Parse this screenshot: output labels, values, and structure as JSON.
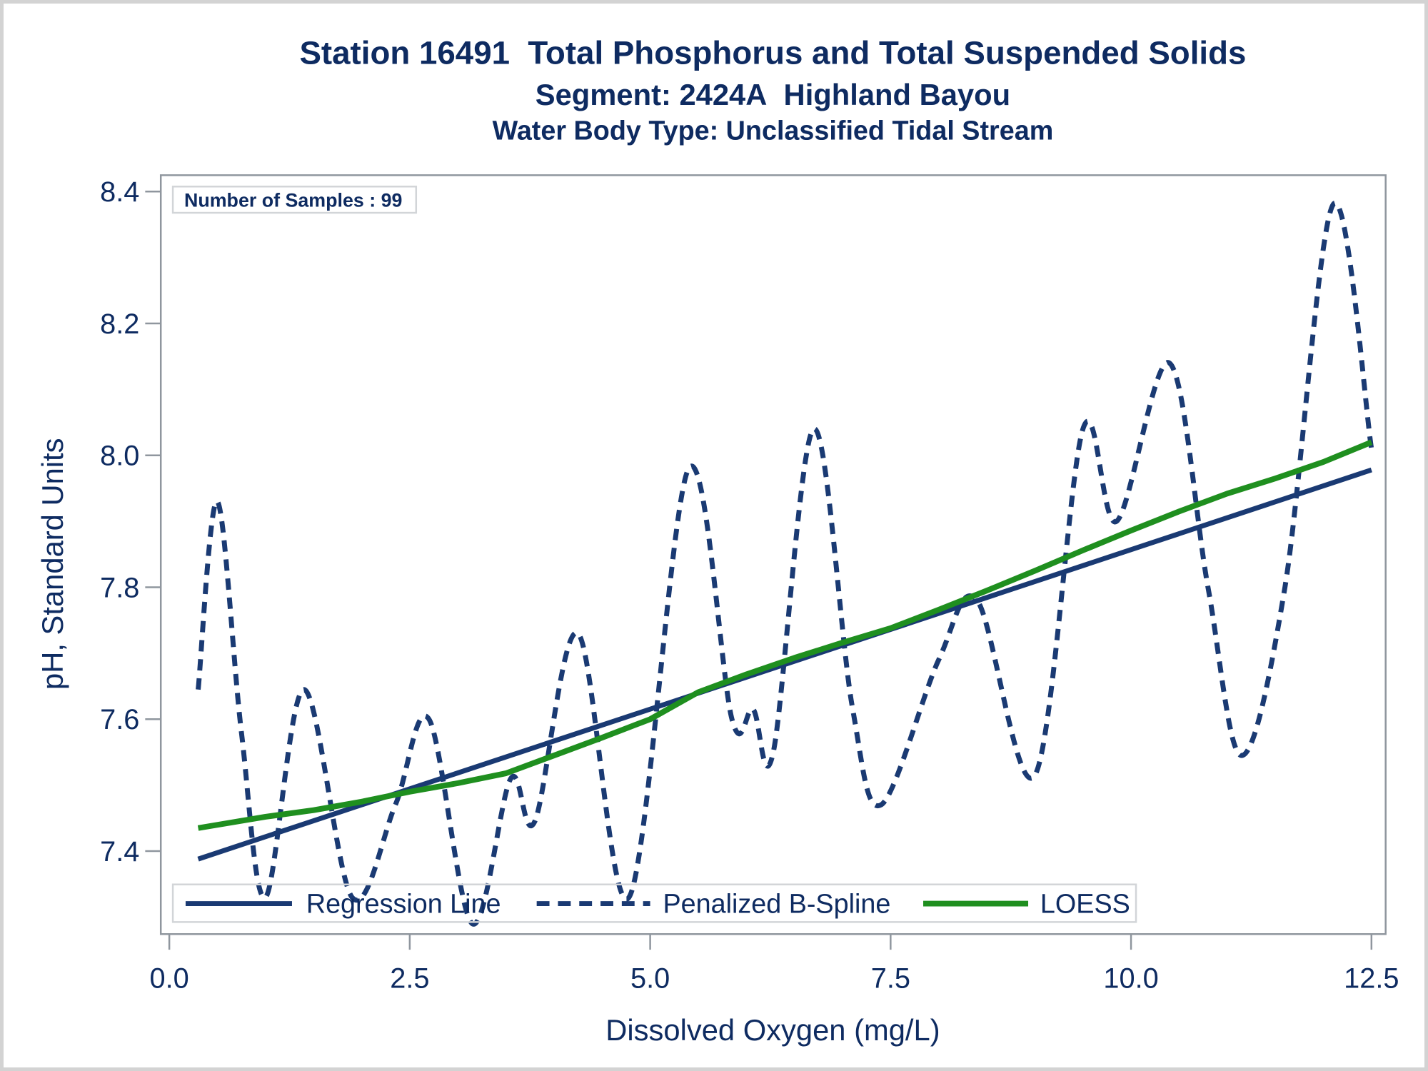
{
  "titles": {
    "line1": "Station 16491  Total Phosphorus and Total Suspended Solids",
    "line2": "Segment: 2424A  Highland Bayou",
    "line3": "Water Body Type: Unclassified Tidal Stream"
  },
  "inset": {
    "label": "Number of Samples : 99"
  },
  "axes": {
    "x": {
      "label": "Dissolved Oxygen (mg/L)",
      "ticks": [
        "0.0",
        "2.5",
        "5.0",
        "7.5",
        "10.0",
        "12.5"
      ]
    },
    "y": {
      "label": "pH, Standard Units",
      "ticks": [
        "8.4",
        "8.2",
        "8.0",
        "7.8",
        "7.6",
        "7.4"
      ]
    }
  },
  "legend": {
    "items": [
      {
        "label": "Regression Line",
        "style": "solid",
        "color": "#1a3a73"
      },
      {
        "label": "Penalized B-Spline",
        "style": "dashed",
        "color": "#1a3a73"
      },
      {
        "label": "LOESS",
        "style": "solid",
        "color": "#1f8f1f"
      }
    ]
  },
  "colors": {
    "text_navy": "#0e2b61",
    "line_navy": "#1a3a73",
    "line_green": "#1f8f1f",
    "frame_gray": "#8f969e",
    "box_border_gray": "#d2d5d8",
    "page_border_gray": "#d3d3d3",
    "background": "#ffffff"
  },
  "chart_data": {
    "type": "line",
    "title": "Station 16491  Total Phosphorus and Total Suspended Solids",
    "subtitle": "Segment: 2424A  Highland Bayou",
    "subtitle2": "Water Body Type: Unclassified Tidal Stream",
    "annotation": "Number of Samples : 99",
    "xlabel": "Dissolved Oxygen (mg/L)",
    "ylabel": "pH, Standard Units",
    "xlim": [
      0,
      12.5
    ],
    "ylim": [
      7.4,
      8.4
    ],
    "xticks": [
      0,
      2.5,
      5,
      7.5,
      10,
      12.5
    ],
    "yticks": [
      7.4,
      7.6,
      7.8,
      8.0,
      8.2,
      8.4
    ],
    "grid": false,
    "legend_position": "bottom-inside",
    "series": [
      {
        "name": "Regression Line",
        "style": "solid",
        "smooth": false,
        "color": "#1a3a73",
        "width": 7,
        "points": [
          [
            0.3,
            7.388
          ],
          [
            12.5,
            7.978
          ]
        ]
      },
      {
        "name": "Penalized B-Spline",
        "style": "dashed",
        "smooth": true,
        "color": "#1a3a73",
        "width": 7,
        "points": [
          [
            0.3,
            7.645
          ],
          [
            0.5,
            7.93
          ],
          [
            0.75,
            7.58
          ],
          [
            1.0,
            7.33
          ],
          [
            1.4,
            7.645
          ],
          [
            1.9,
            7.33
          ],
          [
            2.35,
            7.47
          ],
          [
            2.7,
            7.6
          ],
          [
            3.15,
            7.29
          ],
          [
            3.55,
            7.51
          ],
          [
            3.8,
            7.445
          ],
          [
            4.25,
            7.73
          ],
          [
            4.78,
            7.33
          ],
          [
            5.4,
            7.98
          ],
          [
            5.85,
            7.6
          ],
          [
            6.07,
            7.615
          ],
          [
            6.28,
            7.55
          ],
          [
            6.7,
            8.04
          ],
          [
            7.1,
            7.62
          ],
          [
            7.4,
            7.47
          ],
          [
            8.0,
            7.69
          ],
          [
            8.4,
            7.78
          ],
          [
            9.0,
            7.515
          ],
          [
            9.5,
            8.04
          ],
          [
            9.85,
            7.9
          ],
          [
            10.4,
            8.14
          ],
          [
            10.8,
            7.8
          ],
          [
            11.15,
            7.545
          ],
          [
            11.6,
            7.8
          ],
          [
            12.1,
            8.38
          ],
          [
            12.5,
            8.01
          ]
        ]
      },
      {
        "name": "LOESS",
        "style": "solid",
        "smooth": false,
        "color": "#1f8f1f",
        "width": 8,
        "points": [
          [
            0.3,
            7.435
          ],
          [
            1.0,
            7.452
          ],
          [
            1.5,
            7.462
          ],
          [
            2.0,
            7.475
          ],
          [
            2.5,
            7.49
          ],
          [
            3.0,
            7.503
          ],
          [
            3.5,
            7.518
          ],
          [
            4.0,
            7.545
          ],
          [
            4.5,
            7.572
          ],
          [
            5.0,
            7.6
          ],
          [
            5.5,
            7.641
          ],
          [
            6.0,
            7.668
          ],
          [
            6.5,
            7.693
          ],
          [
            7.0,
            7.716
          ],
          [
            7.5,
            7.738
          ],
          [
            8.0,
            7.766
          ],
          [
            8.5,
            7.795
          ],
          [
            9.0,
            7.825
          ],
          [
            9.5,
            7.856
          ],
          [
            10.0,
            7.886
          ],
          [
            10.5,
            7.915
          ],
          [
            11.0,
            7.942
          ],
          [
            11.5,
            7.965
          ],
          [
            12.0,
            7.99
          ],
          [
            12.5,
            8.02
          ]
        ]
      }
    ]
  }
}
